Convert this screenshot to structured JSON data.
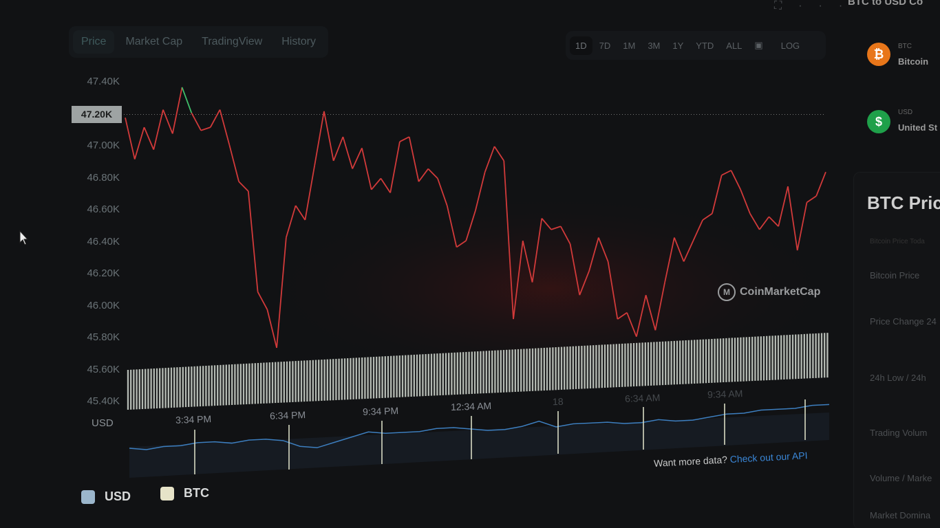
{
  "tabs": [
    "Price",
    "Market Cap",
    "TradingView",
    "History"
  ],
  "ranges": [
    "1D",
    "7D",
    "1M",
    "3M",
    "1Y",
    "YTD",
    "ALL",
    "calendar-icon",
    "LOG"
  ],
  "top_icons": [
    "fullscreen-icon",
    "more-icon"
  ],
  "current_price_label": "47.20K",
  "currency_label": "USD",
  "watermark": "CoinMarketCap",
  "api_prompt": "Want more data?",
  "api_link": "Check out our API",
  "legend": [
    {
      "label": "USD",
      "color": "#9bb6cc"
    },
    {
      "label": "BTC",
      "color": "#e6e3c8"
    }
  ],
  "right_panel": {
    "converter_title": "BTC to USD Co",
    "coins": [
      {
        "ticker": "BTC",
        "name": "Bitcoin",
        "color": "#e8761a",
        "symbol": "₿"
      },
      {
        "ticker": "USD",
        "name": "United St",
        "color": "#1fa04a",
        "symbol": "$"
      }
    ],
    "stats_title": "BTC Pric",
    "stats_subtitle": "Bitcoin Price Toda",
    "stats_rows": [
      "Bitcoin Price",
      "Price Change 24",
      "24h Low / 24h",
      "Trading Volum",
      "Volume / Marke",
      "Market Domina"
    ]
  },
  "chart_data": {
    "type": "line",
    "ylim": [
      45.4,
      47.4
    ],
    "ytick_labels": [
      "47.40K",
      "47.20K",
      "47.00K",
      "46.80K",
      "46.60K",
      "46.40K",
      "46.20K",
      "46.00K",
      "45.80K",
      "45.60K",
      "45.40K"
    ],
    "xtick_labels": [
      "3:34 PM",
      "6:34 PM",
      "9:34 PM",
      "12:34 AM",
      "18",
      "6:34 AM",
      "9:34 AM"
    ],
    "reference_price": 47.2,
    "colors": {
      "above": "#3fbf6a",
      "below": "#d23a3a",
      "navigator": "#3d7fc0",
      "volume": "#cfd6cc"
    },
    "values": [
      47.18,
      46.92,
      47.12,
      46.98,
      47.23,
      47.08,
      47.37,
      47.21,
      47.1,
      47.12,
      47.23,
      47.01,
      46.78,
      46.72,
      46.09,
      45.98,
      45.74,
      46.43,
      46.63,
      46.54,
      46.88,
      47.22,
      46.91,
      47.06,
      46.86,
      46.99,
      46.73,
      46.8,
      46.71,
      47.03,
      47.06,
      46.78,
      46.86,
      46.8,
      46.63,
      46.37,
      46.41,
      46.6,
      46.84,
      47.0,
      46.91,
      45.92,
      46.41,
      46.15,
      46.55,
      46.48,
      46.5,
      46.39,
      46.07,
      46.22,
      46.43,
      46.28,
      45.92,
      45.96,
      45.81,
      46.07,
      45.85,
      46.15,
      46.43,
      46.28,
      46.41,
      46.54,
      46.58,
      46.82,
      46.85,
      46.73,
      46.58,
      46.48,
      46.56,
      46.5,
      46.75,
      46.35,
      46.65,
      46.69,
      46.84
    ],
    "navigator_values": [
      5,
      4,
      5,
      5,
      6,
      6,
      5,
      6,
      6,
      5,
      2,
      1,
      3,
      5,
      7,
      6,
      6,
      6,
      7,
      7,
      6,
      5,
      5,
      6,
      8,
      5,
      6,
      6,
      6,
      5,
      5,
      6,
      5,
      5,
      6,
      7,
      7,
      8,
      8,
      8,
      9,
      9
    ]
  }
}
